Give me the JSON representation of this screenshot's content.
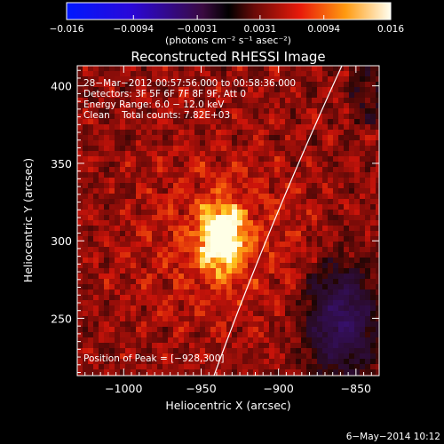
{
  "colorbar": {
    "tick_labels": [
      "−0.016",
      "−0.0094",
      "−0.0031",
      "0.0031",
      "0.0094",
      "0.016"
    ],
    "tick_values": [
      -0.016,
      -0.0094,
      -0.0031,
      0.0031,
      0.0094,
      0.016
    ],
    "range": [
      -0.016,
      0.016
    ],
    "unit_label": "(photons cm⁻² s⁻¹ asec⁻²)"
  },
  "title": "Reconstructed RHESSI Image",
  "info_lines": [
    "28−Mar−2012 00:57:56.000 to 00:58:36.000",
    "Detectors: 3F 5F 6F 7F 8F 9F, Att 0",
    "Energy Range: 6.0 − 12.0 keV",
    "Clean    Total counts: 7.82E+03"
  ],
  "peak_label": "Position of Peak = [−928,300]",
  "xaxis": {
    "label": "Heliocentric X (arcsec)",
    "range": [
      -1030,
      -835
    ],
    "ticks": [
      -1000,
      -950,
      -900,
      -850
    ],
    "tick_labels": [
      "−1000",
      "−950",
      "−900",
      "−850"
    ]
  },
  "yaxis": {
    "label": "Heliocentric Y (arcsec)",
    "range": [
      213,
      413
    ],
    "ticks": [
      250,
      300,
      350,
      400
    ],
    "tick_labels": [
      "250",
      "300",
      "350",
      "400"
    ]
  },
  "footer_date": "6−May−2014 10:12",
  "colors": {
    "limb": "#ffffff",
    "text": "#ffffff",
    "background": "#000000"
  }
}
